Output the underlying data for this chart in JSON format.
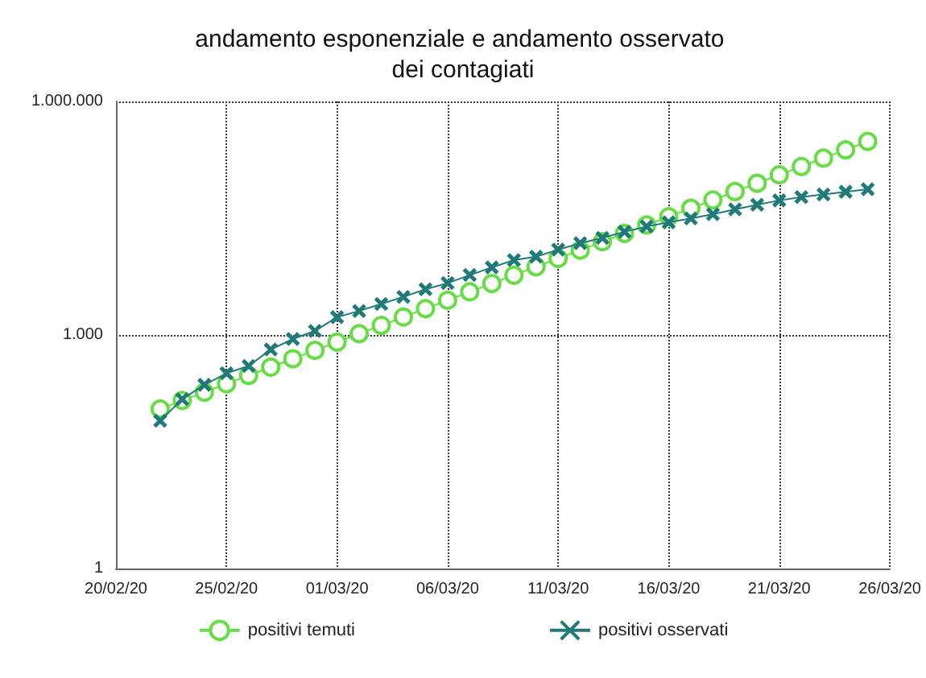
{
  "chart_data": {
    "type": "line",
    "title": "andamento esponenziale e andamento osservato dei contagiati",
    "x": [
      "--02-22",
      "--02-23",
      "--02-24",
      "--02-25",
      "--02-26",
      "--02-27",
      "--02-28",
      "--02-29",
      "--03-01",
      "--03-02",
      "--03-03",
      "--03-04",
      "--03-05",
      "--03-06",
      "--03-07",
      "--03-08",
      "--03-09",
      "--03-10",
      "--03-11",
      "--03-12",
      "--03-13",
      "--03-14",
      "--03-15",
      "--03-16",
      "--03-17",
      "--03-18",
      "--03-19",
      "--03-20",
      "--03-21",
      "--03-22",
      "--03-23",
      "--03-24",
      "--03-25"
    ],
    "series": [
      {
        "name": "positivi temuti",
        "color": "#66dd44",
        "marker": "circle",
        "values": [
          112,
          144,
          184,
          236,
          302,
          386,
          495,
          634,
          811,
          1040,
          1330,
          1700,
          2180,
          2790,
          3580,
          4580,
          5860,
          7520,
          9620,
          12300,
          15800,
          20200,
          25900,
          33100,
          42500,
          54300,
          69500,
          89100,
          114000,
          146000,
          187000,
          239000,
          307000
        ]
      },
      {
        "name": "positivi osservati",
        "color": "#1f7a78",
        "marker": "cross",
        "values": [
          79,
          150,
          229,
          322,
          400,
          650,
          888,
          1128,
          1694,
          2036,
          2502,
          3089,
          3858,
          4636,
          5883,
          7375,
          9172,
          10149,
          12462,
          15113,
          17660,
          21157,
          24747,
          27980,
          31506,
          35713,
          41035,
          47021,
          53578,
          59138,
          63927,
          69176,
          74386
        ]
      }
    ],
    "xlim": [
      "--02-20",
      "--03-26"
    ],
    "xticks": [
      {
        "value": "--02-20",
        "label": "20/02/20"
      },
      {
        "value": "--02-25",
        "label": "25/02/20"
      },
      {
        "value": "--03-01",
        "label": "01/03/20"
      },
      {
        "value": "--03-06",
        "label": "06/03/20"
      },
      {
        "value": "--03-11",
        "label": "11/03/20"
      },
      {
        "value": "--03-16",
        "label": "16/03/20"
      },
      {
        "value": "--03-21",
        "label": "21/03/20"
      },
      {
        "value": "--03-26",
        "label": "26/03/20"
      }
    ],
    "ylim": [
      1,
      1000000
    ],
    "yticks": [
      {
        "value": 1,
        "label": "1"
      },
      {
        "value": 1000,
        "label": "1.000"
      },
      {
        "value": 1000000,
        "label": "1.000.000"
      }
    ],
    "log": "y",
    "grid": true,
    "legend": "bottom",
    "line_style": "solid"
  }
}
